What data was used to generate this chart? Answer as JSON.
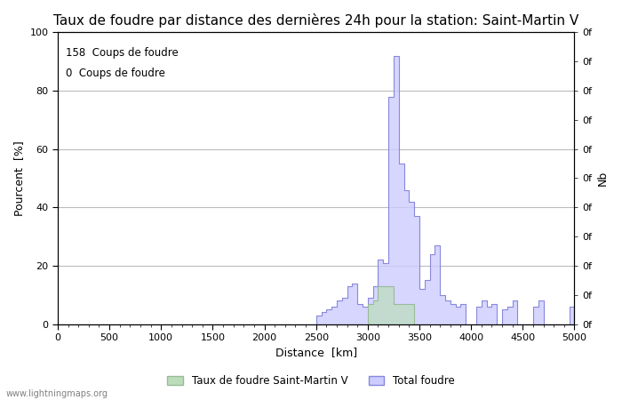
{
  "title": "Taux de foudre par distance des dernières 24h pour la station: Saint-Martin V",
  "xlabel": "Distance  [km]",
  "ylabel_left": "Pourcent  [%]",
  "ylabel_right": "Nb",
  "legend_label1": "Taux de foudre Saint-Martin V",
  "legend_label2": "Total foudre",
  "annotation1": "158  Coups de foudre",
  "annotation2": "0  Coups de foudre",
  "watermark": "www.lightningmaps.org",
  "xlim": [
    0,
    5000
  ],
  "ylim": [
    0,
    100
  ],
  "xticks": [
    0,
    500,
    1000,
    1500,
    2000,
    2500,
    3000,
    3500,
    4000,
    4500,
    5000
  ],
  "yticks": [
    0,
    20,
    40,
    60,
    80,
    100
  ],
  "bg_color": "#ffffff",
  "line_color": "#8888dd",
  "fill_color": "#ccccff",
  "station_line_color": "#99bb99",
  "station_fill_color": "#bbddbb",
  "grid_color": "#bbbbbb",
  "title_fontsize": 11,
  "axis_fontsize": 9,
  "tick_fontsize": 8,
  "distances": [
    0,
    50,
    100,
    150,
    200,
    250,
    300,
    350,
    400,
    450,
    500,
    550,
    600,
    650,
    700,
    750,
    800,
    850,
    900,
    950,
    1000,
    1050,
    1100,
    1150,
    1200,
    1250,
    1300,
    1350,
    1400,
    1450,
    1500,
    1550,
    1600,
    1650,
    1700,
    1750,
    1800,
    1850,
    1900,
    1950,
    2000,
    2050,
    2100,
    2150,
    2200,
    2250,
    2300,
    2350,
    2400,
    2450,
    2500,
    2550,
    2600,
    2650,
    2700,
    2750,
    2800,
    2850,
    2900,
    2950,
    3000,
    3050,
    3100,
    3150,
    3200,
    3250,
    3300,
    3350,
    3400,
    3450,
    3500,
    3550,
    3600,
    3650,
    3700,
    3750,
    3800,
    3850,
    3900,
    3950,
    4000,
    4050,
    4100,
    4150,
    4200,
    4250,
    4300,
    4350,
    4400,
    4450,
    4500,
    4550,
    4600,
    4650,
    4700,
    4750,
    4800,
    4850,
    4900,
    4950,
    5000
  ],
  "total_foudre": [
    0,
    0,
    0,
    0,
    0,
    0,
    0,
    0,
    0,
    0,
    0,
    0,
    0,
    0,
    0,
    0,
    0,
    0,
    0,
    0,
    0,
    0,
    0,
    0,
    0,
    0,
    0,
    0,
    0,
    0,
    0,
    0,
    0,
    0,
    0,
    0,
    0,
    0,
    0,
    0,
    0,
    0,
    0,
    0,
    0,
    0,
    0,
    0,
    0,
    0,
    3,
    4,
    5,
    6,
    8,
    9,
    13,
    14,
    7,
    6,
    9,
    13,
    22,
    21,
    78,
    92,
    55,
    46,
    42,
    37,
    12,
    15,
    24,
    27,
    10,
    8,
    7,
    6,
    7,
    0,
    0,
    6,
    8,
    6,
    7,
    0,
    5,
    6,
    8,
    0,
    0,
    0,
    6,
    8,
    0,
    0,
    0,
    0,
    0,
    6,
    0
  ],
  "station_foudre": [
    0,
    0,
    0,
    0,
    0,
    0,
    0,
    0,
    0,
    0,
    0,
    0,
    0,
    0,
    0,
    0,
    0,
    0,
    0,
    0,
    0,
    0,
    0,
    0,
    0,
    0,
    0,
    0,
    0,
    0,
    0,
    0,
    0,
    0,
    0,
    0,
    0,
    0,
    0,
    0,
    0,
    0,
    0,
    0,
    0,
    0,
    0,
    0,
    0,
    0,
    0,
    0,
    0,
    0,
    0,
    0,
    0,
    0,
    0,
    0,
    7,
    8,
    13,
    13,
    13,
    7,
    7,
    7,
    7,
    0,
    0,
    0,
    0,
    0,
    0,
    0,
    0,
    0,
    0,
    0,
    0,
    0,
    0,
    0,
    0,
    0,
    0,
    0,
    0,
    0,
    0,
    0,
    0,
    0,
    0,
    0,
    0,
    0,
    0,
    0,
    0
  ]
}
